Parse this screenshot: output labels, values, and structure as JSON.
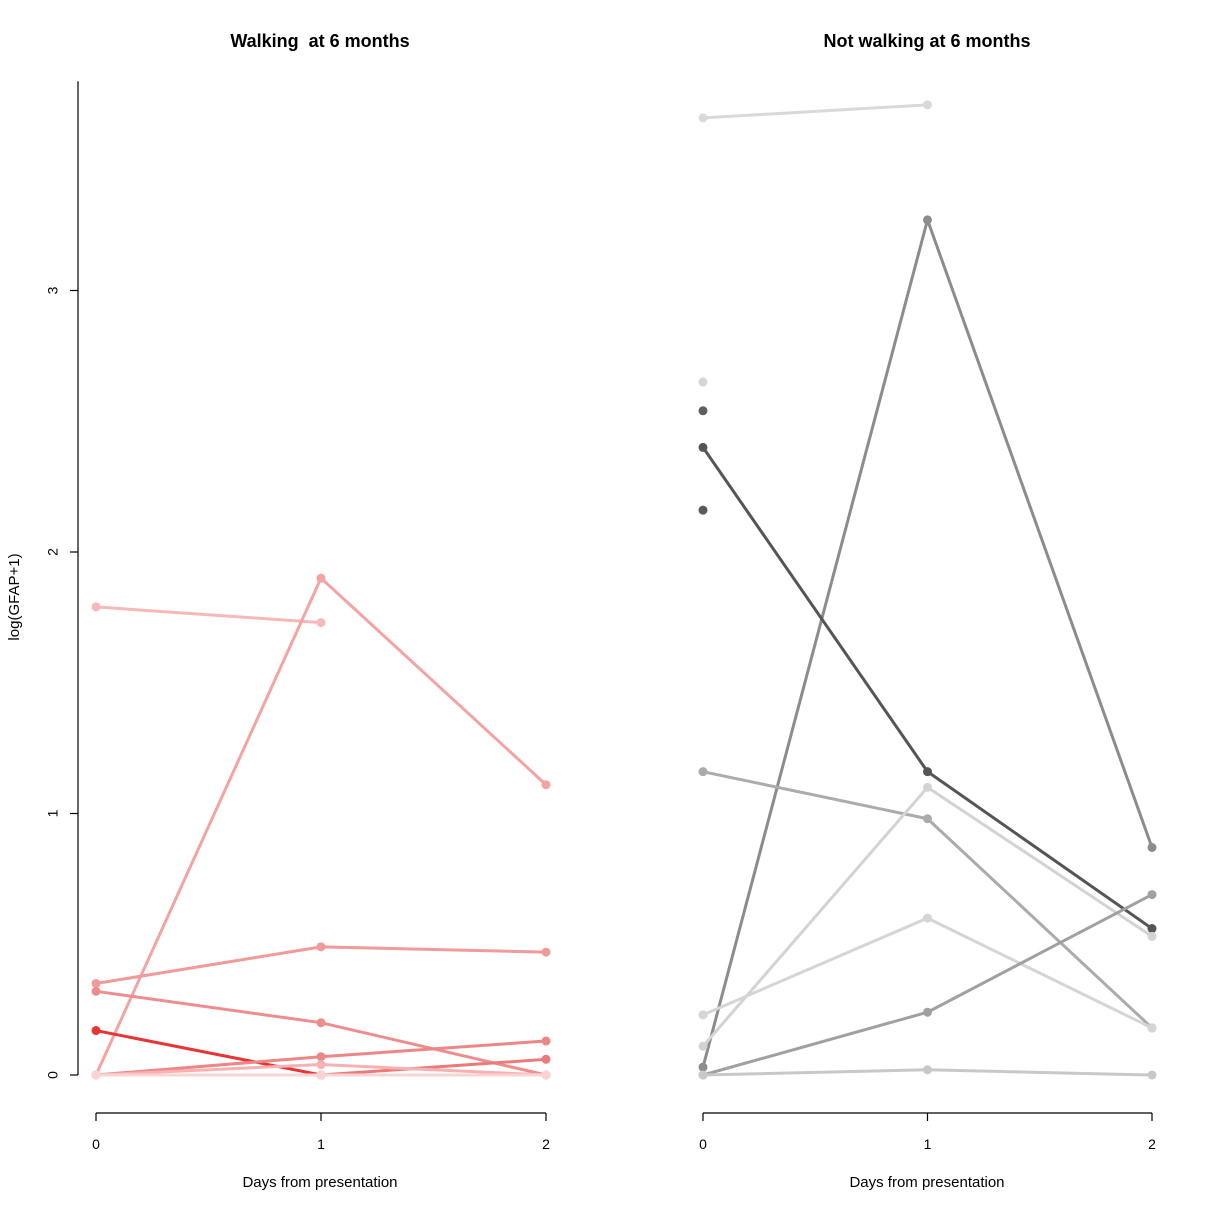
{
  "figure": {
    "ylabel": "log(GFAP+1)",
    "background": "#ffffff"
  },
  "chart_data": [
    {
      "type": "line",
      "title": "Walking  at 6 months",
      "xlabel": "Days from presentation",
      "ylabel": "log(GFAP+1)",
      "x_ticks": [
        0,
        1,
        2
      ],
      "y_ticks": [
        0,
        1,
        2,
        3
      ],
      "xlim": [
        0,
        2
      ],
      "ylim": [
        0,
        3.8
      ],
      "grid": false,
      "series": [
        {
          "color": "#f7b8b8",
          "points": [
            [
              0,
              1.79
            ],
            [
              1,
              1.73
            ]
          ]
        },
        {
          "color": "#f4a3a3",
          "points": [
            [
              0,
              0.0
            ],
            [
              1,
              1.9
            ],
            [
              2,
              1.11
            ]
          ]
        },
        {
          "color": "#f09a9a",
          "points": [
            [
              0,
              0.35
            ],
            [
              1,
              0.49
            ],
            [
              2,
              0.47
            ]
          ]
        },
        {
          "color": "#ee8d8d",
          "points": [
            [
              0,
              0.32
            ],
            [
              1,
              0.2
            ],
            [
              2,
              0.0
            ]
          ]
        },
        {
          "color": "#e53535",
          "points": [
            [
              0,
              0.17
            ],
            [
              1,
              0.0
            ]
          ]
        },
        {
          "color": "#ed8686",
          "points": [
            [
              0,
              0.0
            ],
            [
              1,
              0.07
            ],
            [
              2,
              0.13
            ]
          ]
        },
        {
          "color": "#eb7a7a",
          "points": [
            [
              1,
              0.0
            ],
            [
              2,
              0.06
            ]
          ]
        },
        {
          "color": "#f6b2b2",
          "points": [
            [
              0,
              0.0
            ],
            [
              1,
              0.04
            ],
            [
              2,
              0.0
            ]
          ]
        },
        {
          "color": "#fad3d3",
          "points": [
            [
              0,
              0.0
            ],
            [
              1,
              0.0
            ],
            [
              2,
              0.0
            ]
          ]
        }
      ]
    },
    {
      "type": "line",
      "title": "Not walking at 6 months",
      "xlabel": "Days from presentation",
      "x_ticks": [
        0,
        1,
        2
      ],
      "xlim": [
        0,
        2
      ],
      "ylim": [
        0,
        3.8
      ],
      "grid": false,
      "series": [
        {
          "color": "#d9d9d9",
          "points": [
            [
              0,
              3.66
            ],
            [
              1,
              3.71
            ]
          ]
        },
        {
          "color": "#8c8c8c",
          "points": [
            [
              0,
              0.03
            ],
            [
              1,
              3.27
            ],
            [
              2,
              0.87
            ]
          ]
        },
        {
          "color": "#d6d6d6",
          "points": [
            [
              0,
              2.65
            ]
          ]
        },
        {
          "color": "#5e5e5e",
          "points": [
            [
              0,
              2.54
            ]
          ]
        },
        {
          "color": "#555555",
          "points": [
            [
              0,
              2.4
            ],
            [
              1,
              1.16
            ],
            [
              2,
              0.56
            ]
          ]
        },
        {
          "color": "#5a5a5a",
          "points": [
            [
              0,
              2.16
            ]
          ]
        },
        {
          "color": "#ababab",
          "points": [
            [
              0,
              1.16
            ],
            [
              1,
              0.98
            ],
            [
              2,
              0.18
            ]
          ]
        },
        {
          "color": "#d3d3d3",
          "points": [
            [
              0,
              0.11
            ],
            [
              1,
              1.1
            ],
            [
              2,
              0.53
            ]
          ]
        },
        {
          "color": "#d5d5d5",
          "points": [
            [
              0,
              0.23
            ],
            [
              1,
              0.6
            ],
            [
              2,
              0.18
            ]
          ]
        },
        {
          "color": "#a0a0a0",
          "points": [
            [
              0,
              0.0
            ],
            [
              1,
              0.24
            ],
            [
              2,
              0.69
            ]
          ]
        },
        {
          "color": "#c8c8c8",
          "points": [
            [
              0,
              0.0
            ],
            [
              1,
              0.02
            ],
            [
              2,
              0.0
            ]
          ]
        }
      ]
    }
  ]
}
